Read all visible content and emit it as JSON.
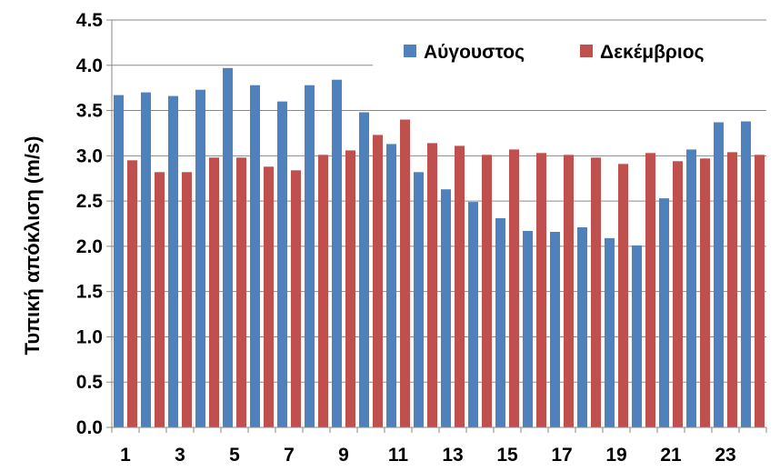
{
  "chart_data": {
    "type": "bar",
    "title": "",
    "xlabel": "",
    "ylabel": "Τυπική απόκλιση (m/s)",
    "ylim": [
      0,
      4.5
    ],
    "yticks": [
      "0.0",
      "0.5",
      "1.0",
      "1.5",
      "2.0",
      "2.5",
      "3.0",
      "3.5",
      "4.0",
      "4.5"
    ],
    "categories": [
      "1",
      "2",
      "3",
      "4",
      "5",
      "6",
      "7",
      "8",
      "9",
      "10",
      "11",
      "12",
      "13",
      "14",
      "15",
      "16",
      "17",
      "18",
      "19",
      "20",
      "21",
      "22",
      "23",
      "24"
    ],
    "xtick_labels": [
      "1",
      "3",
      "5",
      "7",
      "9",
      "11",
      "13",
      "15",
      "17",
      "19",
      "21",
      "23"
    ],
    "grid": "horizontal",
    "legend_position": "top-right",
    "series": [
      {
        "name": "Αύγουστος",
        "color": "#4F81BD",
        "values": [
          3.67,
          3.7,
          3.66,
          3.73,
          3.97,
          3.78,
          3.6,
          3.78,
          3.84,
          3.48,
          3.13,
          2.82,
          2.63,
          2.49,
          2.31,
          2.17,
          2.16,
          2.21,
          2.09,
          2.01,
          2.53,
          3.07,
          3.37,
          3.38
        ]
      },
      {
        "name": "Δεκέμβριος",
        "color": "#C0504D",
        "values": [
          2.95,
          2.82,
          2.82,
          2.98,
          2.98,
          2.88,
          2.84,
          3.01,
          3.06,
          3.23,
          3.4,
          3.14,
          3.11,
          3.01,
          3.07,
          3.03,
          3.01,
          2.98,
          2.91,
          3.03,
          2.94,
          2.97,
          3.04,
          3.01
        ]
      }
    ]
  }
}
